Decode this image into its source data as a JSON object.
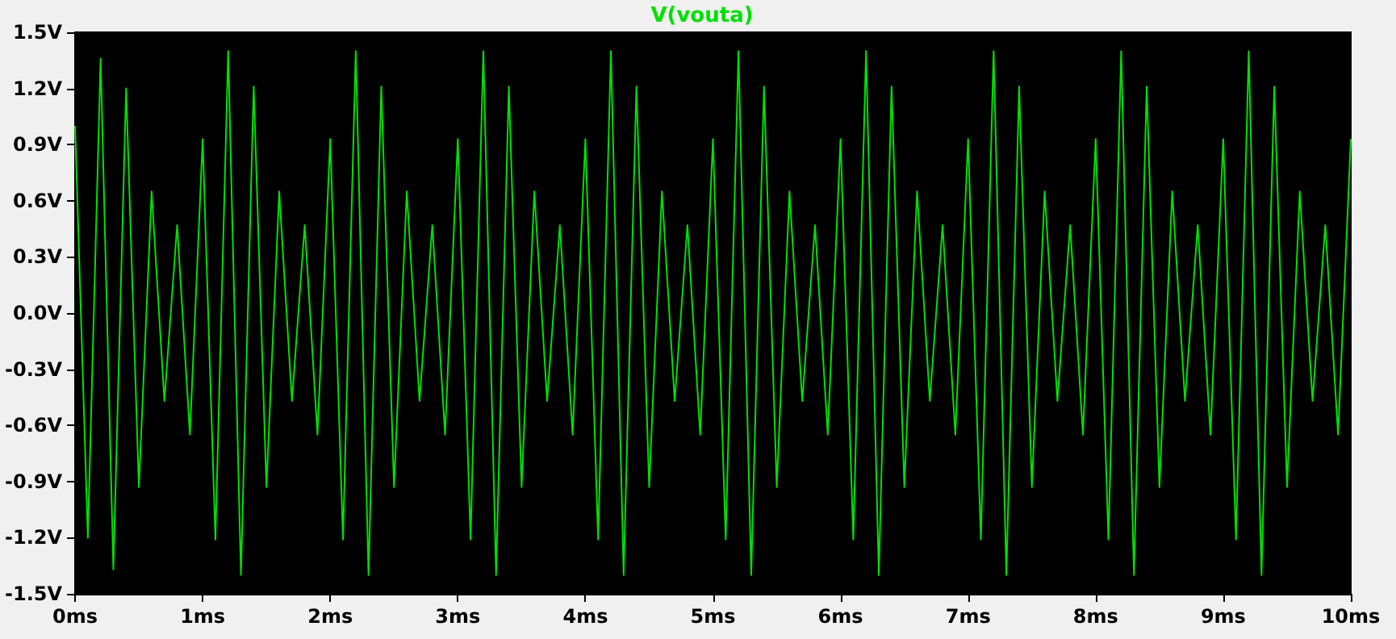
{
  "chart_data": {
    "type": "line",
    "x": [
      0,
      0.1,
      0.2,
      0.3,
      0.4,
      0.5,
      0.6,
      0.7,
      0.8,
      0.9,
      1,
      1.1,
      1.2,
      1.3,
      1.4,
      1.5,
      1.6,
      1.7,
      1.8,
      1.9,
      2,
      2.1,
      2.2,
      2.3,
      2.4,
      2.5,
      2.6,
      2.7,
      2.8,
      2.9,
      3,
      3.1,
      3.2,
      3.3,
      3.4,
      3.5,
      3.6,
      3.7,
      3.8,
      3.9,
      4,
      4.1,
      4.2,
      4.3,
      4.4,
      4.5,
      4.6,
      4.7,
      4.8,
      4.9,
      5,
      5.1,
      5.2,
      5.3,
      5.4,
      5.5,
      5.6,
      5.7,
      5.8,
      5.9,
      6,
      6.1,
      6.2,
      6.3,
      6.4,
      6.5,
      6.6,
      6.7,
      6.8,
      6.9,
      7,
      7.1,
      7.2,
      7.3,
      7.4,
      7.5,
      7.6,
      7.7,
      7.8,
      7.9,
      8,
      8.1,
      8.2,
      8.3,
      8.4,
      8.5,
      8.6,
      8.7,
      8.8,
      8.9,
      9,
      9.1,
      9.2,
      9.3,
      9.4,
      9.5,
      9.6,
      9.7,
      9.8,
      9.9,
      10
    ],
    "series": [
      {
        "name": "V(vouta)",
        "color": "#00e000",
        "values": [
          1.0,
          -1.2,
          1.36,
          -1.37,
          1.2,
          -0.93,
          0.65,
          -0.47,
          0.47,
          -0.65,
          0.93,
          -1.21,
          1.4,
          -1.4,
          1.21,
          -0.93,
          0.65,
          -0.47,
          0.47,
          -0.65,
          0.93,
          -1.21,
          1.4,
          -1.4,
          1.21,
          -0.93,
          0.65,
          -0.47,
          0.47,
          -0.65,
          0.93,
          -1.21,
          1.4,
          -1.4,
          1.21,
          -0.93,
          0.65,
          -0.47,
          0.47,
          -0.65,
          0.93,
          -1.21,
          1.4,
          -1.4,
          1.21,
          -0.93,
          0.65,
          -0.47,
          0.47,
          -0.65,
          0.93,
          -1.21,
          1.4,
          -1.4,
          1.21,
          -0.93,
          0.65,
          -0.47,
          0.47,
          -0.65,
          0.93,
          -1.21,
          1.4,
          -1.4,
          1.21,
          -0.93,
          0.65,
          -0.47,
          0.47,
          -0.65,
          0.93,
          -1.21,
          1.4,
          -1.4,
          1.21,
          -0.93,
          0.65,
          -0.47,
          0.47,
          -0.65,
          0.93,
          -1.21,
          1.4,
          -1.4,
          1.21,
          -0.93,
          0.65,
          -0.47,
          0.47,
          -0.65,
          0.93,
          -1.21,
          1.4,
          -1.4,
          1.21,
          -0.93,
          0.65,
          -0.47,
          0.47,
          -0.65,
          0.93
        ]
      }
    ],
    "xlim": [
      0,
      10
    ],
    "xticks": [
      {
        "value": 0,
        "label": "0ms"
      },
      {
        "value": 1,
        "label": "1ms"
      },
      {
        "value": 2,
        "label": "2ms"
      },
      {
        "value": 3,
        "label": "3ms"
      },
      {
        "value": 4,
        "label": "4ms"
      },
      {
        "value": 5,
        "label": "5ms"
      },
      {
        "value": 6,
        "label": "6ms"
      },
      {
        "value": 7,
        "label": "7ms"
      },
      {
        "value": 8,
        "label": "8ms"
      },
      {
        "value": 9,
        "label": "9ms"
      },
      {
        "value": 10,
        "label": "10ms"
      }
    ],
    "ylim": [
      -1.5,
      1.5
    ],
    "yticks": [
      {
        "value": -1.5,
        "label": "-1.5V"
      },
      {
        "value": -1.2,
        "label": "-1.2V"
      },
      {
        "value": -0.9,
        "label": "-0.9V"
      },
      {
        "value": -0.6,
        "label": "-0.6V"
      },
      {
        "value": -0.3,
        "label": "-0.3V"
      },
      {
        "value": 0,
        "label": "0.0V"
      },
      {
        "value": 0.3,
        "label": "0.3V"
      },
      {
        "value": 0.6,
        "label": "0.6V"
      },
      {
        "value": 0.9,
        "label": "0.9V"
      },
      {
        "value": 1.2,
        "label": "1.2V"
      },
      {
        "value": 1.5,
        "label": "1.5V"
      }
    ],
    "legend": "top",
    "marker": "none",
    "line_style": "solid"
  }
}
